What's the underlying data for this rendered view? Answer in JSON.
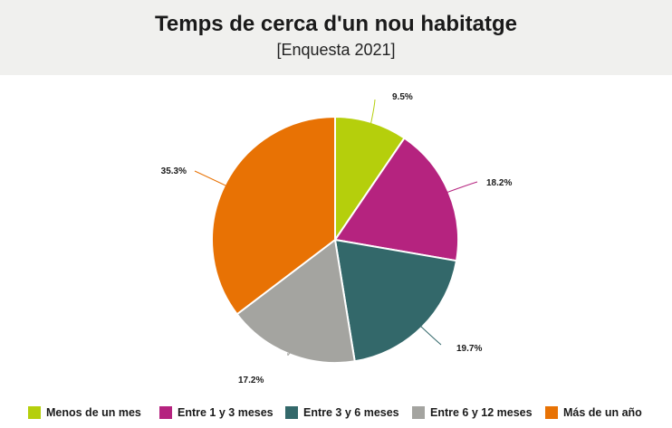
{
  "header": {
    "title": "Temps de cerca d'un nou habitatge",
    "subtitle": "[Enquesta 2021]"
  },
  "chart_data": {
    "type": "pie",
    "title": "Temps de cerca d'un nou habitatge",
    "subtitle": "[Enquesta 2021]",
    "legend_position": "bottom",
    "slices": [
      {
        "label": "Menos de un mes",
        "value": 9.5,
        "display": "9.5%",
        "color": "#b5cf0c"
      },
      {
        "label": "Entre 1 y 3 meses",
        "value": 18.2,
        "display": "18.2%",
        "color": "#b5237f"
      },
      {
        "label": "Entre 3 y 6 meses",
        "value": 19.7,
        "display": "19.7%",
        "color": "#33686a"
      },
      {
        "label": "Entre 6 y 12 meses",
        "value": 17.2,
        "display": "17.2%",
        "color": "#a4a4a0"
      },
      {
        "label": "Más de un año",
        "value": 35.3,
        "display": "35.3%",
        "color": "#e87204"
      }
    ]
  }
}
